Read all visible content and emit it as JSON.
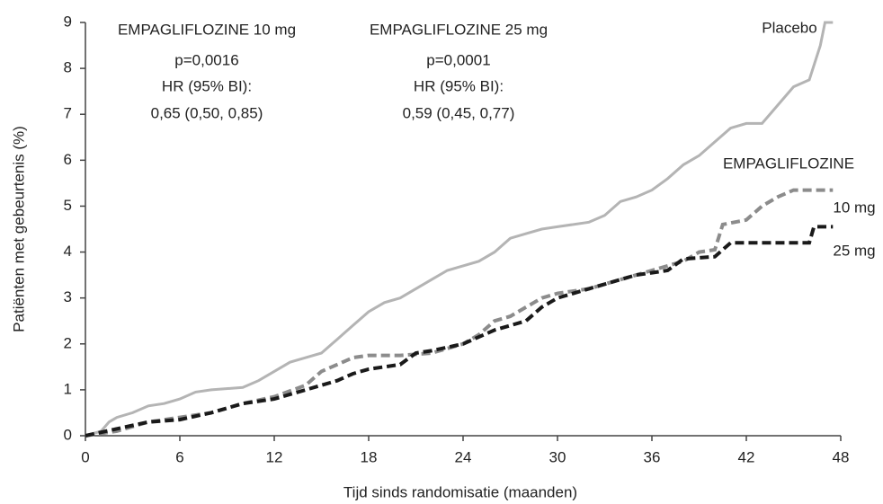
{
  "chart_data": {
    "type": "line",
    "x_label": "Tijd sinds randomisatie (maanden)",
    "y_label": "Patiënten met gebeurtenis (%)",
    "annotations": [
      "EMPAGLIFLOZINE 10 mg",
      "p=0,0016",
      "HR (95% BI):",
      "0,65 (0,50, 0,85)",
      "EMPAGLIFLOZINE 25 mg",
      "p=0,0001",
      "HR (95% BI):",
      "0,59 (0,45, 0,77)",
      "EMPAGLIFLOZINE"
    ],
    "xlim": [
      0,
      48
    ],
    "xticks": [
      0,
      6,
      12,
      18,
      24,
      30,
      36,
      42,
      48
    ],
    "ylim": [
      0,
      9
    ],
    "yticks": [
      0,
      1,
      2,
      3,
      4,
      5,
      6,
      7,
      8,
      9
    ],
    "series": [
      {
        "name": "Placebo",
        "color": "#b4b4b4",
        "dashed": false,
        "x": [
          0,
          1,
          1.5,
          2,
          3,
          4,
          5,
          6,
          7,
          8,
          10,
          11,
          12,
          13,
          14,
          15,
          16,
          17,
          18,
          19,
          20,
          21,
          22,
          23,
          24,
          25,
          26,
          27,
          28,
          29,
          30,
          32,
          33,
          34,
          35,
          36,
          37,
          38,
          39,
          40,
          41,
          42,
          43,
          44,
          45,
          46,
          46.7,
          47,
          47.5
        ],
        "values": [
          0,
          0.1,
          0.3,
          0.4,
          0.5,
          0.65,
          0.7,
          0.8,
          0.95,
          1.0,
          1.05,
          1.2,
          1.4,
          1.6,
          1.7,
          1.8,
          2.1,
          2.4,
          2.7,
          2.9,
          3.0,
          3.2,
          3.4,
          3.6,
          3.7,
          3.8,
          4.0,
          4.3,
          4.4,
          4.5,
          4.55,
          4.65,
          4.8,
          5.1,
          5.2,
          5.35,
          5.6,
          5.9,
          6.1,
          6.4,
          6.7,
          6.8,
          6.8,
          7.2,
          7.6,
          7.75,
          8.5,
          9.0,
          9.0
        ]
      },
      {
        "name": "10 mg",
        "color": "#8c8c8c",
        "dashed": true,
        "x": [
          0,
          2,
          4,
          6,
          8,
          10,
          12,
          14,
          15,
          16,
          17,
          18,
          20,
          22,
          24,
          25,
          26,
          27,
          28,
          29,
          30,
          32,
          34,
          36,
          38,
          39,
          40,
          40.5,
          42,
          43,
          44,
          45,
          47.5
        ],
        "values": [
          0,
          0.1,
          0.3,
          0.4,
          0.5,
          0.7,
          0.85,
          1.1,
          1.4,
          1.55,
          1.7,
          1.75,
          1.75,
          1.8,
          2.0,
          2.2,
          2.5,
          2.6,
          2.8,
          3.0,
          3.1,
          3.2,
          3.4,
          3.6,
          3.8,
          4.0,
          4.05,
          4.6,
          4.7,
          5.0,
          5.2,
          5.35,
          5.35
        ]
      },
      {
        "name": "25 mg",
        "color": "#1a1a1a",
        "dashed": true,
        "x": [
          0,
          2,
          4,
          6,
          8,
          10,
          12,
          14,
          16,
          17,
          18,
          20,
          21,
          22,
          24,
          26,
          28,
          29,
          30,
          32,
          34,
          35,
          36,
          37,
          38,
          40,
          41,
          46,
          46.3,
          47.5
        ],
        "values": [
          0,
          0.15,
          0.3,
          0.35,
          0.5,
          0.7,
          0.8,
          1.0,
          1.2,
          1.35,
          1.45,
          1.55,
          1.8,
          1.85,
          2.0,
          2.3,
          2.5,
          2.8,
          3.0,
          3.2,
          3.4,
          3.5,
          3.55,
          3.6,
          3.85,
          3.9,
          4.2,
          4.2,
          4.55,
          4.55
        ]
      }
    ]
  }
}
